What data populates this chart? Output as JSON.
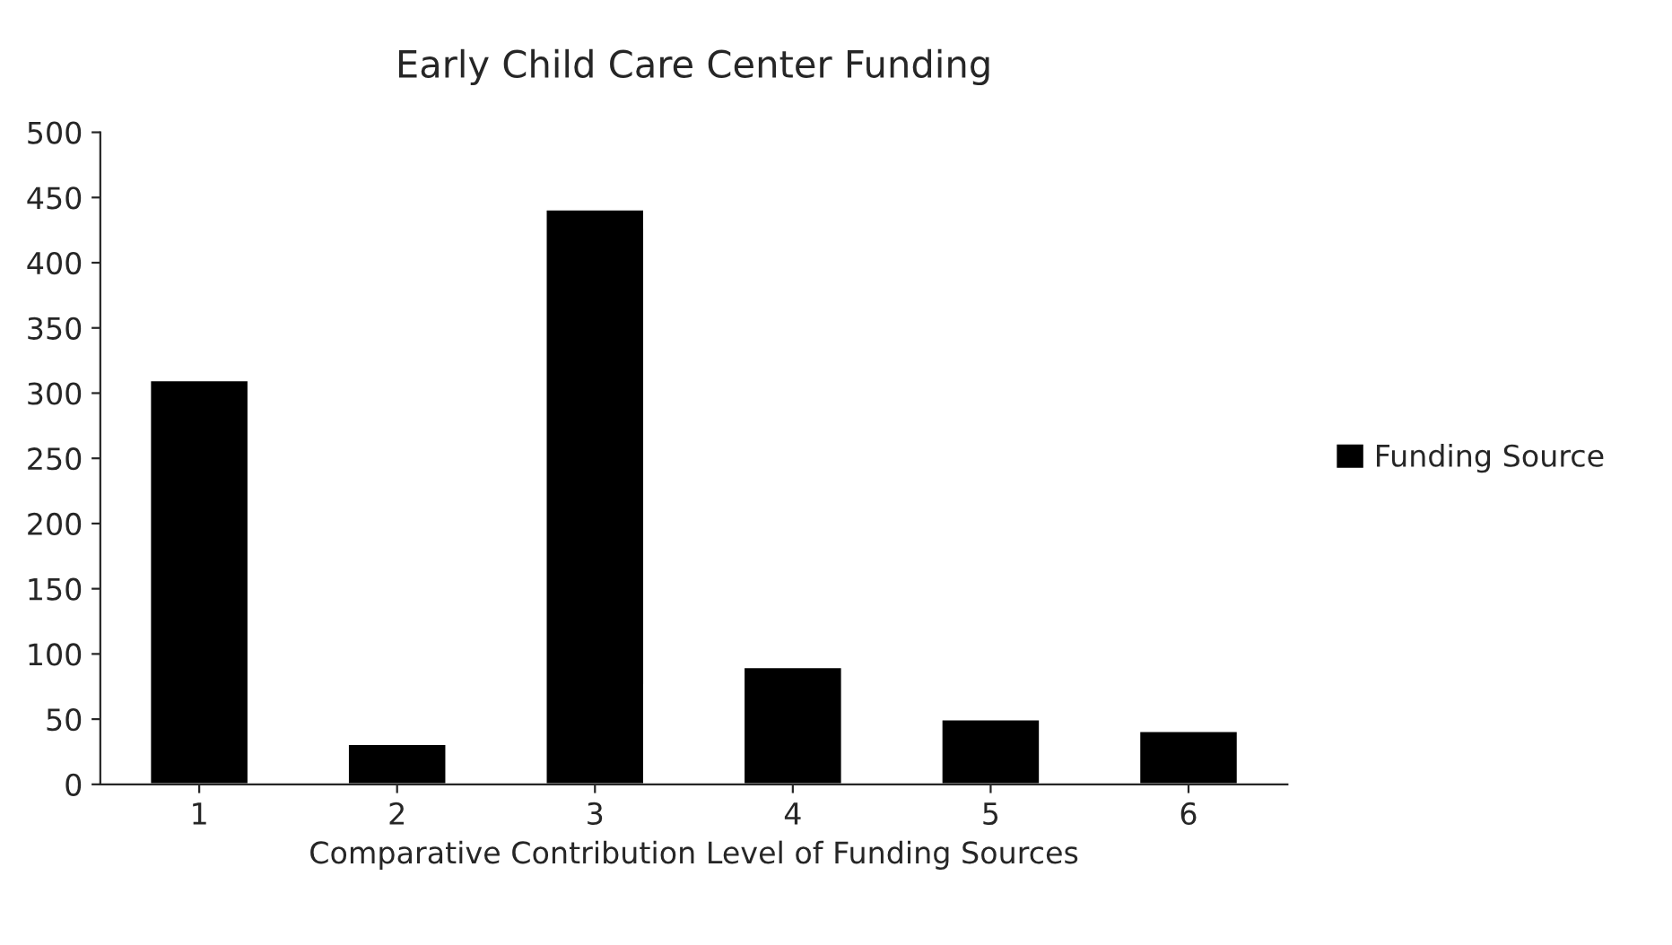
{
  "chart_data": {
    "type": "bar",
    "title": "Early Child Care Center Funding",
    "xlabel": "Comparative Contribution Level of Funding Sources",
    "categories": [
      "1",
      "2",
      "3",
      "4",
      "5",
      "6"
    ],
    "series": [
      {
        "name": "Funding Source",
        "color": "#000000",
        "values": [
          310,
          31,
          441,
          90,
          50,
          41
        ]
      }
    ],
    "ylim": [
      0,
      500
    ],
    "yticks": [
      0,
      50,
      100,
      150,
      200,
      250,
      300,
      350,
      400,
      450,
      500
    ],
    "grid": false,
    "legend": "right"
  }
}
